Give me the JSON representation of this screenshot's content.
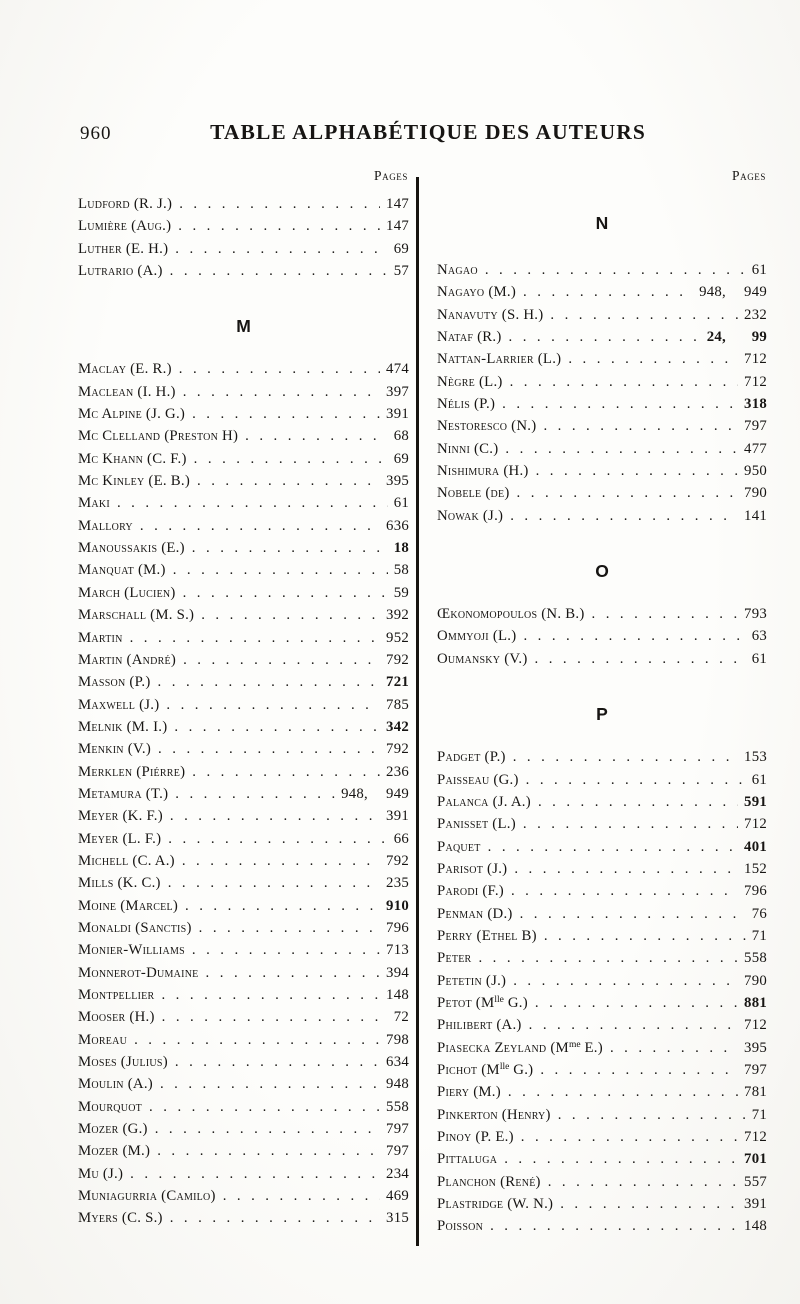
{
  "page": {
    "number": "960",
    "title": "TABLE ALPHABÉTIQUE DES AUTEURS"
  },
  "headers": {
    "left": "Pages",
    "right": "Pages"
  },
  "colors": {
    "ink": "#171513",
    "paper": "#fbfaf7"
  },
  "left_column": {
    "sections": [
      {
        "letter": "",
        "entries": [
          {
            "name": "Ludford (R. J.)",
            "pages": "147"
          },
          {
            "name": "Lumière (Aug.)",
            "pages": "147"
          },
          {
            "name": "Luther (E. H.)",
            "pages": "69"
          },
          {
            "name": "Lutrario (A.)",
            "pages": "57"
          }
        ]
      },
      {
        "letter": "M",
        "entries": [
          {
            "name": "Maclay (E. R.)",
            "pages": "474"
          },
          {
            "name": "Maclean (I. H.)",
            "pages": "397"
          },
          {
            "name": "Mc Alpine (J. G.)",
            "pages": "391"
          },
          {
            "name": "Mc Clelland (Preston H)",
            "pages": "68"
          },
          {
            "name": "Mc Khann (C. F.)",
            "pages": "69"
          },
          {
            "name": "Mc Kinley (E. B.)",
            "pages": "395"
          },
          {
            "name": "Maki",
            "pages": "61"
          },
          {
            "name": "Mallory",
            "pages": "636"
          },
          {
            "name": "Manoussakis (E.)",
            "pages": "18",
            "bold": true
          },
          {
            "name": "Manquat (M.)",
            "pages": "58"
          },
          {
            "name": "March (Lucien)",
            "pages": "59"
          },
          {
            "name": "Marschall (M. S.)",
            "pages": "392"
          },
          {
            "name": "Martin",
            "pages": "952"
          },
          {
            "name": "Martin (André)",
            "pages": "792"
          },
          {
            "name": "Masson (P.)",
            "pages": "721",
            "bold": true
          },
          {
            "name": "Maxwell (J.)",
            "pages": "785"
          },
          {
            "name": "Melnik (M. I.)",
            "pages": "342",
            "bold": true
          },
          {
            "name": "Menkin (V.)",
            "pages": "792"
          },
          {
            "name": "Merklen (Piérre)",
            "pages": "236"
          },
          {
            "name": "Metamura (T.)",
            "pages": "948, 949"
          },
          {
            "name": "Meyer (K. F.)",
            "pages": "391"
          },
          {
            "name": "Meyer (L. F.)",
            "pages": "66"
          },
          {
            "name": "Michell (C. A.)",
            "pages": "792"
          },
          {
            "name": "Mills (K. C.)",
            "pages": "235"
          },
          {
            "name": "Moine (Marcel)",
            "pages": "910",
            "bold": true
          },
          {
            "name": "Monaldi (Sanctis)",
            "pages": "796"
          },
          {
            "name": "Monier-Williams",
            "pages": "713"
          },
          {
            "name": "Monnerot-Dumaine",
            "pages": "394"
          },
          {
            "name": "Montpellier",
            "pages": "148"
          },
          {
            "name": "Mooser (H.)",
            "pages": "72"
          },
          {
            "name": "Moreau",
            "pages": "798"
          },
          {
            "name": "Moses (Julius)",
            "pages": "634"
          },
          {
            "name": "Moulin (A.)",
            "pages": "948"
          },
          {
            "name": "Mourquot",
            "pages": "558"
          },
          {
            "name": "Mozer (G.)",
            "pages": "797"
          },
          {
            "name": "Mozer (M.)",
            "pages": "797"
          },
          {
            "name": "Mu (J.)",
            "pages": "234"
          },
          {
            "name": "Muniagurria (Camilo)",
            "pages": "469"
          },
          {
            "name": "Myers (C. S.)",
            "pages": "315"
          }
        ]
      }
    ]
  },
  "right_column": {
    "sections": [
      {
        "letter": "N",
        "entries": [
          {
            "name": "Nagao",
            "pages": "61"
          },
          {
            "name": "Nagayo (M.)",
            "pages": "948, 949"
          },
          {
            "name": "Nanavuty (S. H.)",
            "pages": "232"
          },
          {
            "name": "Nataf (R.)",
            "pages": "24, 99",
            "bold": true
          },
          {
            "name": "Nattan-Larrier (L.)",
            "pages": "712"
          },
          {
            "name": "Nègre (L.)",
            "pages": "712"
          },
          {
            "name": "Nélis (P.)",
            "pages": "318",
            "bold": true
          },
          {
            "name": "Nestoresco (N.)",
            "pages": "797"
          },
          {
            "name": "Ninni (C.)",
            "pages": "477"
          },
          {
            "name": "Nishimura (H.)",
            "pages": "950"
          },
          {
            "name": "Nobele (de)",
            "pages": "790"
          },
          {
            "name": "Nowak (J.)",
            "pages": "141"
          }
        ]
      },
      {
        "letter": "O",
        "entries": [
          {
            "name": "Œkonomopoulos (N. B.)",
            "pages": "793"
          },
          {
            "name": "Ommyoji (L.)",
            "pages": "63"
          },
          {
            "name": "Oumansky (V.)",
            "pages": "61"
          }
        ]
      },
      {
        "letter": "P",
        "entries": [
          {
            "name": "Padget (P.)",
            "pages": "153"
          },
          {
            "name": "Paisseau (G.)",
            "pages": "61"
          },
          {
            "name": "Palanca (J. A.)",
            "pages": "591",
            "bold": true
          },
          {
            "name": "Panisset (L.)",
            "pages": "712"
          },
          {
            "name": "Paquet",
            "pages": "401",
            "bold": true
          },
          {
            "name": "Parisot (J.)",
            "pages": "152"
          },
          {
            "name": "Parodi (F.)",
            "pages": "796"
          },
          {
            "name": "Penman (D.)",
            "pages": "76"
          },
          {
            "name": "Perry (Ethel B)",
            "pages": "71"
          },
          {
            "name": "Peter",
            "pages": "558"
          },
          {
            "name": "Petetin (J.)",
            "pages": "790"
          },
          {
            "name": "Petot (M{lle} G.)",
            "pages": "881",
            "bold": true
          },
          {
            "name": "Philibert (A.)",
            "pages": "712"
          },
          {
            "name": "Piasecka Zeyland (M{me} E.)",
            "pages": "395"
          },
          {
            "name": "Pichot (M{lle} G.)",
            "pages": "797"
          },
          {
            "name": "Piery (M.)",
            "pages": "781"
          },
          {
            "name": "Pinkerton (Henry)",
            "pages": "71"
          },
          {
            "name": "Pinoy (P. E.)",
            "pages": "712"
          },
          {
            "name": "Pittaluga",
            "pages": "701",
            "bold": true
          },
          {
            "name": "Planchon (René)",
            "pages": "557"
          },
          {
            "name": "Plastridge (W. N.)",
            "pages": "391"
          },
          {
            "name": "Poisson",
            "pages": "148"
          }
        ]
      }
    ]
  }
}
